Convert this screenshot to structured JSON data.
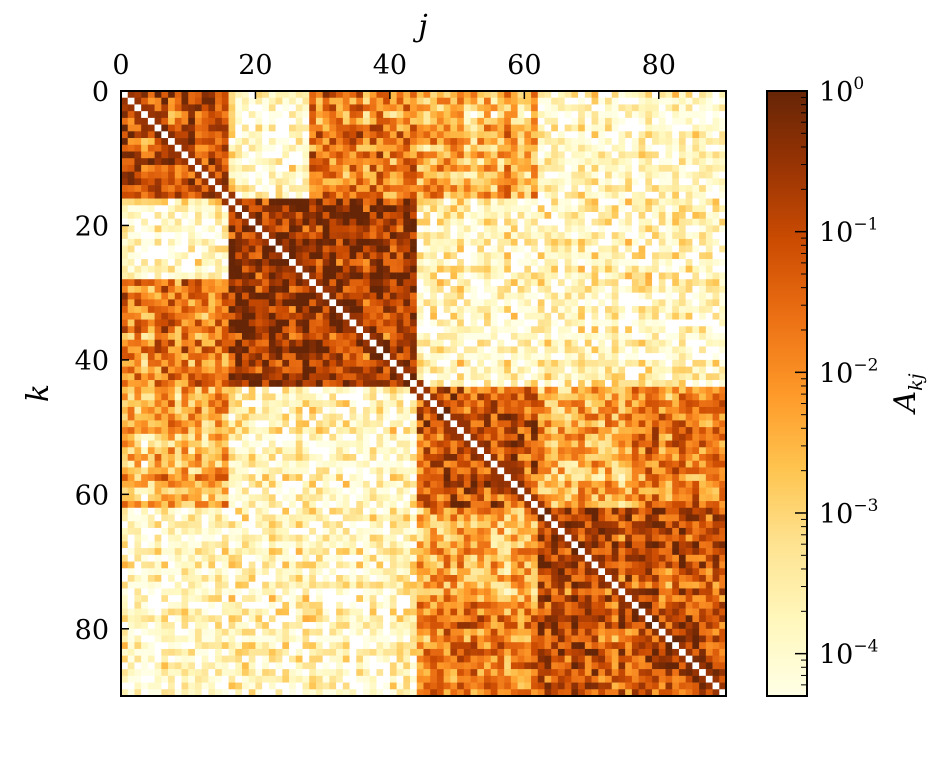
{
  "chart_data": {
    "type": "heatmap",
    "title": "",
    "n": 90,
    "xlabel": "j",
    "ylabel": "k",
    "xlim": [
      0,
      90
    ],
    "ylim": [
      90,
      0
    ],
    "x_ticks": [
      0,
      20,
      40,
      60,
      80
    ],
    "y_ticks": [
      0,
      20,
      40,
      60,
      80
    ],
    "x_axis_position": "top",
    "y_axis_inverted": true,
    "diagonal_value": 0,
    "colorbar": {
      "label_main": "A",
      "label_sub": "kj",
      "scale": "log",
      "range": [
        5e-05,
        1
      ],
      "ticks": [
        {
          "value": 1,
          "base": "10",
          "exp": "0"
        },
        {
          "value": 0.1,
          "base": "10",
          "exp": "−1"
        },
        {
          "value": 0.01,
          "base": "10",
          "exp": "−2"
        },
        {
          "value": 0.001,
          "base": "10",
          "exp": "−3"
        },
        {
          "value": 0.0001,
          "base": "10",
          "exp": "−4"
        }
      ],
      "colormap": "YlOrBr",
      "colors": [
        "#ffffe5",
        "#fff7bc",
        "#fee391",
        "#fec44f",
        "#fe9929",
        "#ec7014",
        "#cc4c02",
        "#993404",
        "#662506"
      ]
    },
    "matrix_description": "symmetric 90x90 connectivity matrix with strong blocks along diagonal",
    "blocks": [
      {
        "range": [
          0,
          16
        ],
        "strength": 0.15
      },
      {
        "range": [
          16,
          44
        ],
        "strength": 0.2
      },
      {
        "range": [
          44,
          62
        ],
        "strength": 0.1
      },
      {
        "range": [
          62,
          90
        ],
        "strength": 0.12
      }
    ],
    "cross_blocks": [
      {
        "rows": [
          0,
          16
        ],
        "cols": [
          28,
          44
        ],
        "strength": 0.02
      },
      {
        "rows": [
          28,
          44
        ],
        "cols": [
          0,
          16
        ],
        "strength": 0.02
      },
      {
        "rows": [
          44,
          62
        ],
        "cols": [
          0,
          16
        ],
        "strength": 0.005
      },
      {
        "rows": [
          62,
          90
        ],
        "cols": [
          44,
          62
        ],
        "strength": 0.004
      },
      {
        "rows": [
          44,
          62
        ],
        "cols": [
          62,
          90
        ],
        "strength": 0.004
      },
      {
        "rows": [
          76,
          90
        ],
        "cols": [
          44,
          62
        ],
        "strength": 0.02
      }
    ]
  }
}
